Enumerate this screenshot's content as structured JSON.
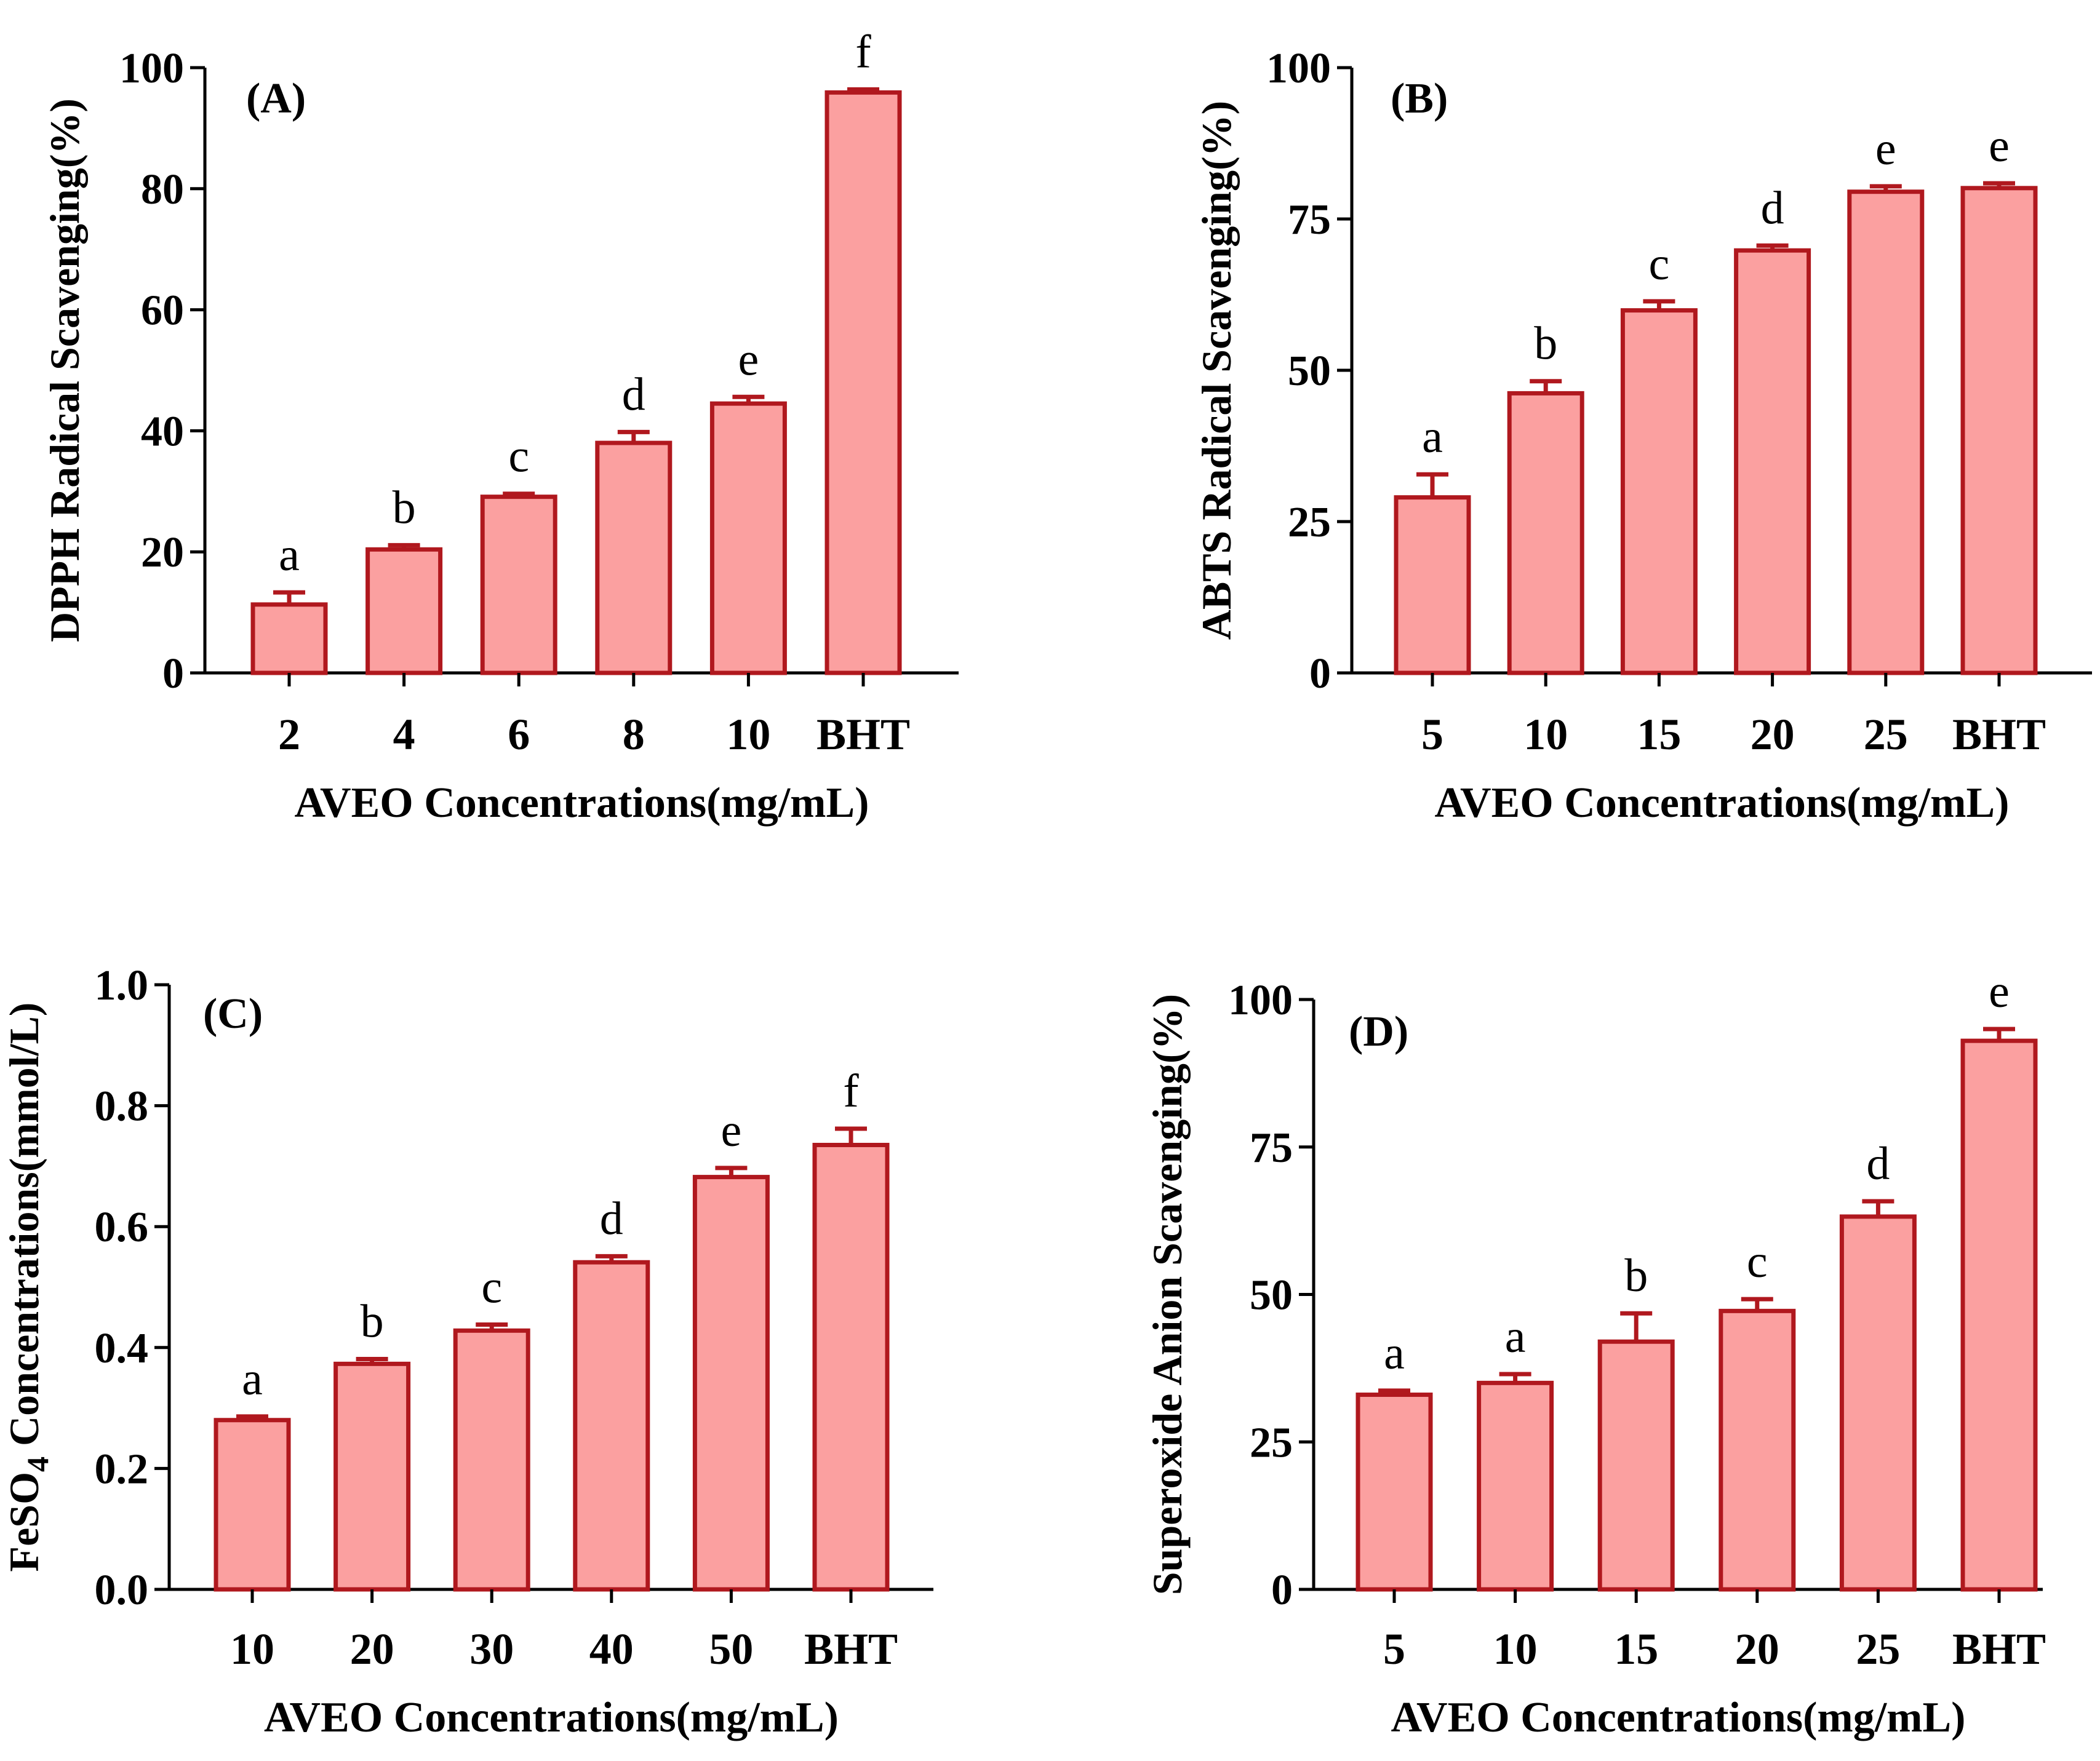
{
  "colors": {
    "bar_fill": "#fba0a0",
    "bar_stroke": "#b0181e",
    "axis": "#000000"
  },
  "chart_data": [
    {
      "type": "bar",
      "panel_label": "(A)",
      "ylabel": "DPPH Radical Scavenging(%)",
      "xlabel": "AVEO Concentrations(mg/mL)",
      "categories": [
        "2",
        "4",
        "6",
        "8",
        "10",
        "BHT"
      ],
      "values": [
        11.3,
        20.4,
        29.1,
        38.0,
        44.5,
        95.9
      ],
      "errors": [
        2.0,
        0.7,
        0.5,
        1.8,
        1.1,
        0.5
      ],
      "letters": [
        "a",
        "b",
        "c",
        "d",
        "e",
        "f"
      ],
      "ylim": [
        0,
        100
      ],
      "yticks": [
        0,
        20,
        40,
        60,
        80,
        100
      ],
      "ytick_labels": [
        "0",
        "20",
        "40",
        "60",
        "80",
        "100"
      ]
    },
    {
      "type": "bar",
      "panel_label": "(B)",
      "ylabel": "ABTS Radical Scavenging(%)",
      "xlabel": "AVEO Concentrations(mg/mL)",
      "categories": [
        "5",
        "10",
        "15",
        "20",
        "25",
        "BHT"
      ],
      "values": [
        29.0,
        46.2,
        59.9,
        69.8,
        79.5,
        80.1
      ],
      "errors": [
        3.8,
        2.0,
        1.5,
        0.8,
        0.9,
        0.8
      ],
      "letters": [
        "a",
        "b",
        "c",
        "d",
        "e",
        "e"
      ],
      "ylim": [
        0,
        100
      ],
      "yticks": [
        0,
        25,
        50,
        75,
        100
      ],
      "ytick_labels": [
        "0",
        "25",
        "50",
        "75",
        "100"
      ]
    },
    {
      "type": "bar",
      "panel_label": "(C)",
      "ylabel": "FeSO",
      "ylabel_subscript": "4",
      "ylabel_tail": " Concentrations(mmol/L)",
      "xlabel": "AVEO Concentrations(mg/mL)",
      "categories": [
        "10",
        "20",
        "30",
        "40",
        "50",
        "BHT"
      ],
      "values": [
        0.28,
        0.373,
        0.428,
        0.541,
        0.682,
        0.735
      ],
      "errors": [
        0.006,
        0.008,
        0.01,
        0.01,
        0.015,
        0.027
      ],
      "letters": [
        "a",
        "b",
        "c",
        "d",
        "e",
        "f"
      ],
      "ylim": [
        0,
        1.0
      ],
      "yticks": [
        0,
        0.2,
        0.4,
        0.6,
        0.8,
        1.0
      ],
      "ytick_labels": [
        "0.0",
        "0.2",
        "0.4",
        "0.6",
        "0.8",
        "1.0"
      ]
    },
    {
      "type": "bar",
      "panel_label": "(D)",
      "ylabel": "Superoxide Anion Scavenging(%)",
      "xlabel": "AVEO Concentrations(mg/mL)",
      "categories": [
        "5",
        "10",
        "15",
        "20",
        "25",
        "BHT"
      ],
      "values": [
        33.0,
        35.0,
        42.0,
        47.2,
        63.2,
        93.0
      ],
      "errors": [
        0.7,
        1.5,
        4.8,
        2.0,
        2.6,
        2.0
      ],
      "letters": [
        "a",
        "a",
        "b",
        "c",
        "d",
        "e"
      ],
      "ylim": [
        0,
        100
      ],
      "yticks": [
        0,
        25,
        50,
        75,
        100
      ],
      "ytick_labels": [
        "0",
        "25",
        "50",
        "75",
        "100"
      ]
    }
  ]
}
